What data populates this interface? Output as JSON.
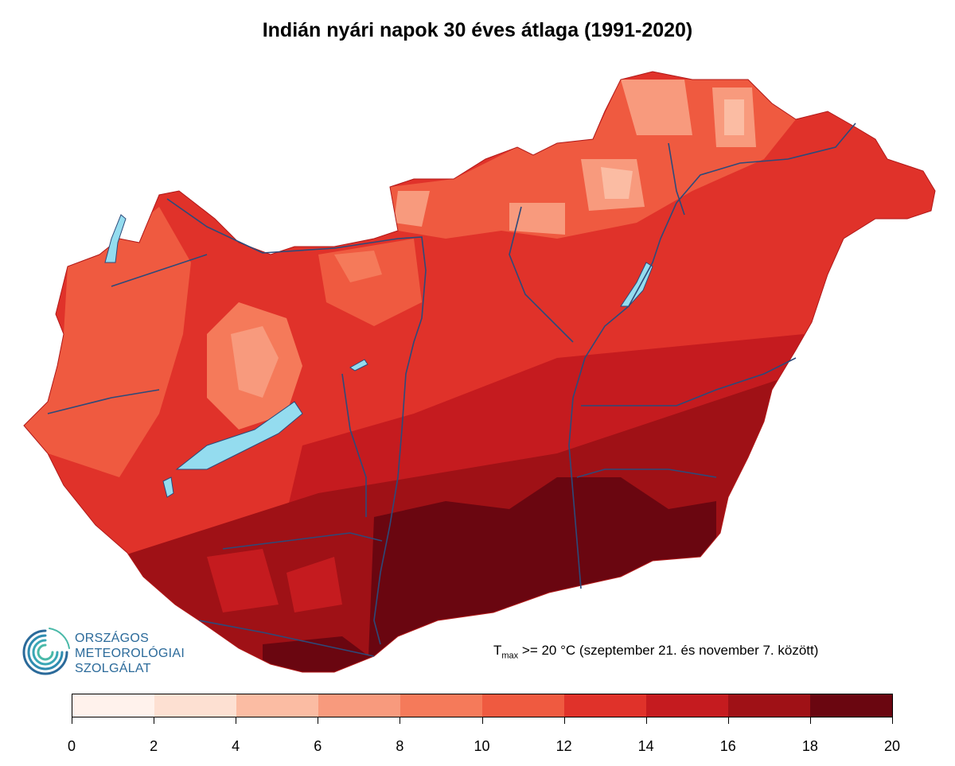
{
  "title": "Indián nyári napok 30 éves átlaga (1991-2020)",
  "note": {
    "prefix": "T",
    "subscript": "max",
    "text": " >= 20 °C (szeptember 21. és november 7. között)"
  },
  "logo": {
    "line1": "ORSZÁGOS",
    "line2": "METEOROLÓGIAI",
    "line3": "SZOLGÁLAT",
    "color": "#2b6a9a"
  },
  "legend": {
    "tick_labels": [
      "0",
      "2",
      "4",
      "6",
      "8",
      "10",
      "12",
      "14",
      "16",
      "18",
      "20"
    ],
    "colors": [
      "#fff2ec",
      "#fde0d2",
      "#fbbca3",
      "#f89a7d",
      "#f57a5a",
      "#ef5a40",
      "#e0322a",
      "#c51b1f",
      "#9f1116",
      "#6a0610"
    ]
  },
  "colors": {
    "water": "#94dcef",
    "rivers": "#2d4a7a"
  }
}
